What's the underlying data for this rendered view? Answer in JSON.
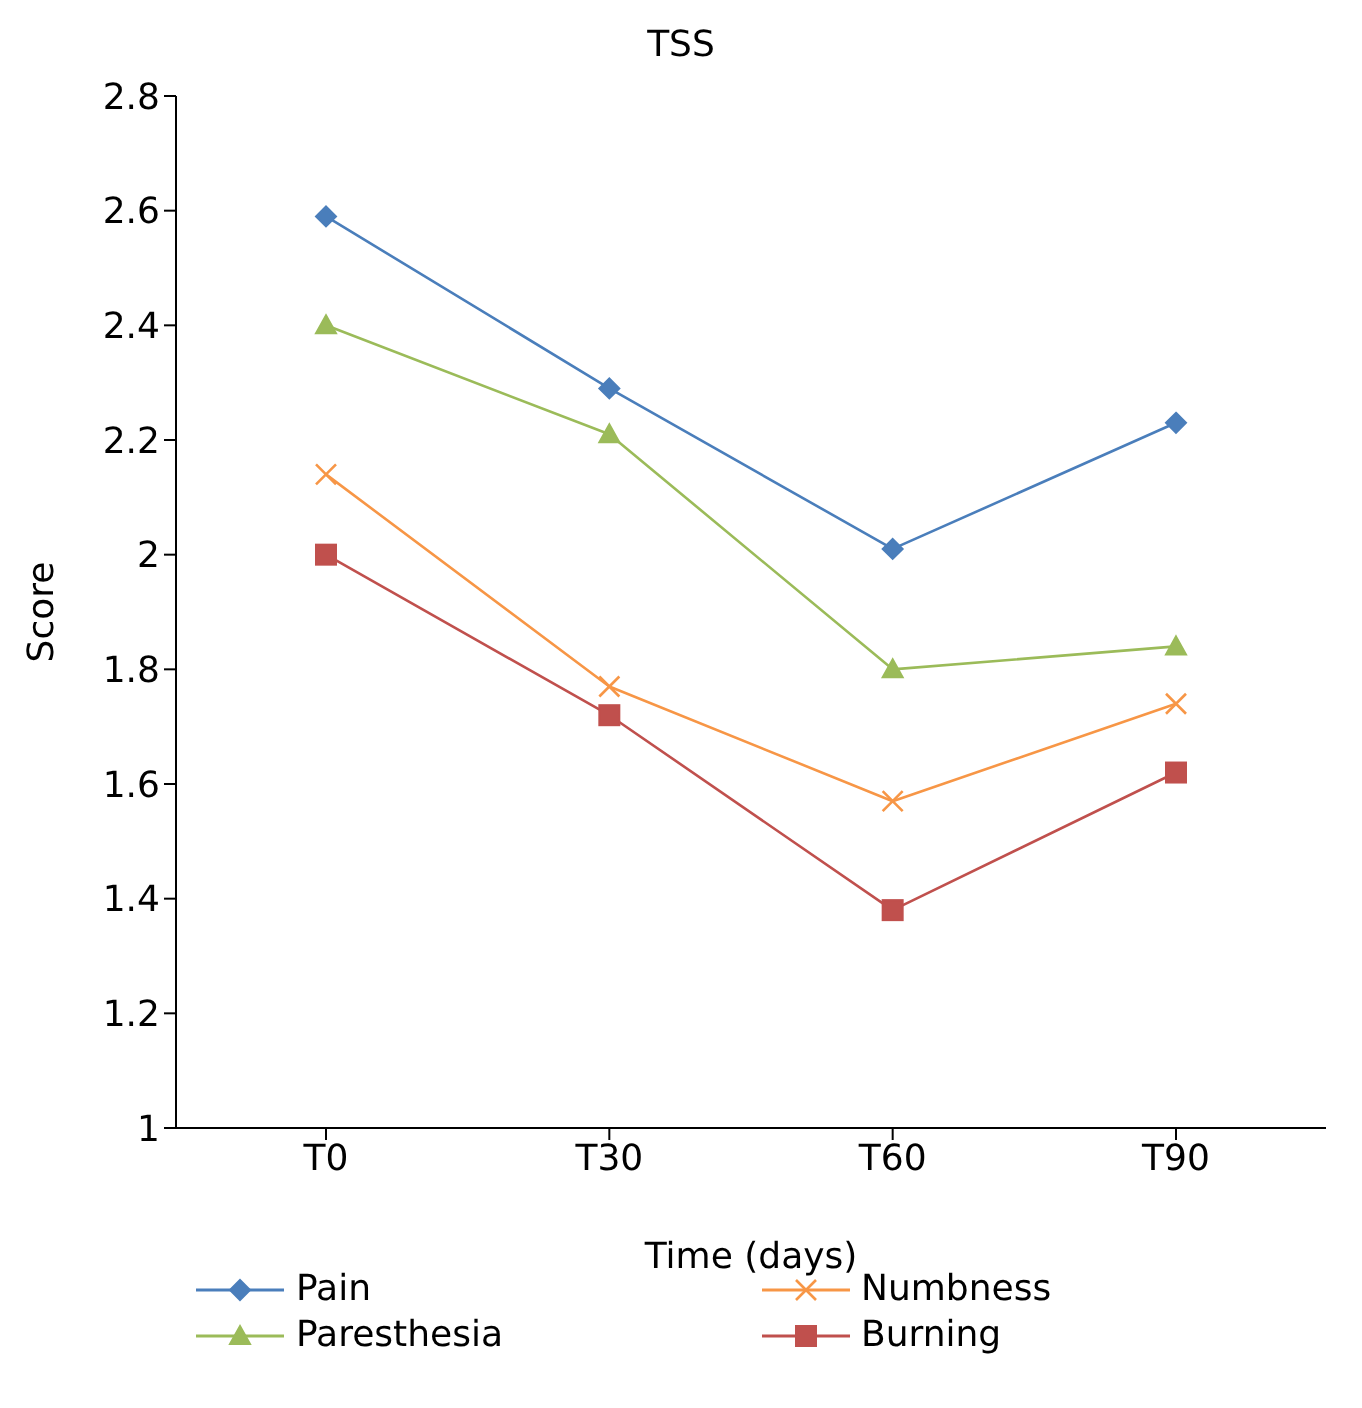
{
  "chart_data": {
    "type": "line",
    "title": "TSS",
    "xlabel": "Time (days)",
    "ylabel": "Score",
    "categories": [
      "T0",
      "T30",
      "T60",
      "T90"
    ],
    "series": [
      {
        "name": "Pain",
        "color": "#4a7ebb",
        "marker": "diamond",
        "values": [
          2.59,
          2.29,
          2.01,
          2.23
        ]
      },
      {
        "name": "Paresthesia",
        "color": "#9bbb59",
        "marker": "triangle",
        "values": [
          2.4,
          2.21,
          1.8,
          1.84
        ]
      },
      {
        "name": "Numbness",
        "color": "#f79646",
        "marker": "cross",
        "values": [
          2.14,
          1.77,
          1.57,
          1.74
        ]
      },
      {
        "name": "Burning",
        "color": "#c0504d",
        "marker": "square",
        "values": [
          2.0,
          1.72,
          1.38,
          1.62
        ]
      }
    ],
    "ylim": [
      1,
      2.8
    ],
    "yticks": [
      1,
      1.2,
      1.4,
      1.6,
      1.8,
      2,
      2.2,
      2.4,
      2.6,
      2.8
    ],
    "grid": false,
    "legend": "bottom"
  }
}
